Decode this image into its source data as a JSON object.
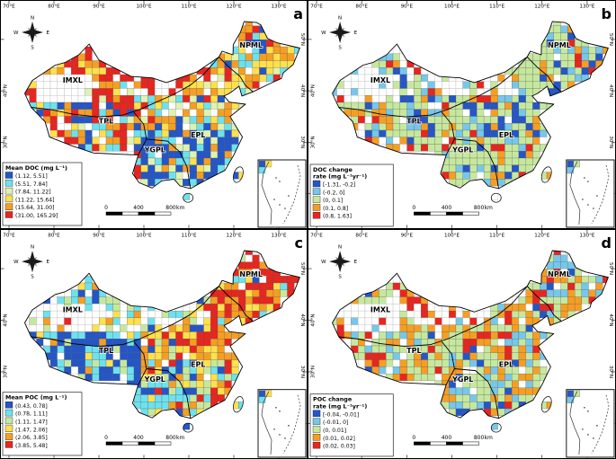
{
  "figure": {
    "background": "#ffffff",
    "type": "four-panel gridded lake-region map of China"
  },
  "axis": {
    "lon_labels": [
      "70°E",
      "80°E",
      "90°E",
      "100°E",
      "110°E",
      "120°E",
      "130°E"
    ],
    "lat_labels_left": [
      "40°N",
      "30°N"
    ],
    "lat_labels_right": [
      "50°N",
      "40°N",
      "30°N",
      "20°N"
    ]
  },
  "compass": {
    "n": "N",
    "e": "E",
    "s": "S",
    "w": "W"
  },
  "scalebar": {
    "ticks": [
      "0",
      "400",
      "800"
    ],
    "unit": "km"
  },
  "region_labels": [
    "NPML",
    "IMXL",
    "TPL",
    "YGPL",
    "EPL"
  ],
  "panels": [
    {
      "letter": "a",
      "legend_title_lines": [
        "Mean DOC (mg L⁻¹)"
      ],
      "legend_items": [
        {
          "label": "(1.12, 5.51]",
          "color": "#2456c8"
        },
        {
          "label": "(5.51, 7.84]",
          "color": "#6ee1ee"
        },
        {
          "label": "(7.84, 11.22]",
          "color": "#dff2b0"
        },
        {
          "label": "(11.22, 15.64]",
          "color": "#ffe04d"
        },
        {
          "label": "(15.64, 31.00]",
          "color": "#f59e23"
        },
        {
          "label": "(31.00, 165.29]",
          "color": "#e8251f"
        }
      ],
      "cell_pattern": {
        "IMXL": {
          "nodata": 0.15,
          "weights": [
            6,
            7,
            6,
            14,
            26,
            41
          ]
        },
        "NPML": {
          "nodata": 0.06,
          "weights": [
            8,
            18,
            12,
            22,
            24,
            16
          ]
        },
        "TPL": {
          "nodata": 0.12,
          "weights": [
            18,
            10,
            6,
            10,
            22,
            34
          ]
        },
        "YGPL": {
          "nodata": 0.05,
          "weights": [
            52,
            20,
            10,
            9,
            6,
            3
          ]
        },
        "EPLN": {
          "nodata": 0.08,
          "weights": [
            8,
            12,
            14,
            22,
            24,
            20
          ]
        },
        "EPLS": {
          "nodata": 0.05,
          "weights": [
            48,
            22,
            12,
            9,
            6,
            3
          ]
        }
      }
    },
    {
      "letter": "b",
      "legend_title_lines": [
        "DOC change",
        "rate (mg L⁻¹yr⁻¹)"
      ],
      "legend_items": [
        {
          "label": "[-1.31, -0.2]",
          "color": "#2456c8"
        },
        {
          "label": "(-0.2, 0]",
          "color": "#76c7e9"
        },
        {
          "label": "(0, 0.1]",
          "color": "#c6e89e"
        },
        {
          "label": "(0.1, 0.8]",
          "color": "#f59e23"
        },
        {
          "label": "(0.8, 1.63]",
          "color": "#e8251f"
        }
      ],
      "cell_pattern": {
        "IMXL": {
          "nodata": 0.3,
          "weights": [
            14,
            16,
            38,
            18,
            14
          ]
        },
        "NPML": {
          "nodata": 0.1,
          "weights": [
            10,
            18,
            52,
            14,
            6
          ]
        },
        "TPL": {
          "nodata": 0.12,
          "weights": [
            12,
            16,
            46,
            16,
            10
          ]
        },
        "YGPL": {
          "nodata": 0.05,
          "weights": [
            8,
            14,
            62,
            12,
            4
          ]
        },
        "EPLN": {
          "nodata": 0.08,
          "weights": [
            10,
            14,
            50,
            18,
            8
          ]
        },
        "EPLS": {
          "nodata": 0.04,
          "weights": [
            8,
            16,
            60,
            12,
            4
          ]
        }
      }
    },
    {
      "letter": "c",
      "legend_title_lines": [
        "Mean POC (mg L⁻¹)"
      ],
      "legend_items": [
        {
          "label": "(0.43, 0.78]",
          "color": "#2456c8"
        },
        {
          "label": "(0.78, 1.11]",
          "color": "#6ee1ee"
        },
        {
          "label": "(1.11, 1.47]",
          "color": "#c6e89e"
        },
        {
          "label": "(1.47, 2.06]",
          "color": "#ffe04d"
        },
        {
          "label": "(2.06, 3.85]",
          "color": "#f59e23"
        },
        {
          "label": "(3.85, 5.48]",
          "color": "#e8251f"
        }
      ],
      "cell_pattern": {
        "IMXL": {
          "nodata": 0.35,
          "weights": [
            18,
            22,
            22,
            18,
            12,
            8
          ]
        },
        "NPML": {
          "nodata": 0.06,
          "weights": [
            3,
            5,
            6,
            12,
            22,
            52
          ]
        },
        "TPL": {
          "nodata": 0.1,
          "weights": [
            56,
            24,
            9,
            6,
            3,
            2
          ]
        },
        "YGPL": {
          "nodata": 0.05,
          "weights": [
            14,
            26,
            22,
            18,
            12,
            8
          ]
        },
        "EPLN": {
          "nodata": 0.08,
          "weights": [
            4,
            8,
            10,
            18,
            28,
            32
          ]
        },
        "EPLS": {
          "nodata": 0.05,
          "weights": [
            10,
            16,
            16,
            22,
            22,
            14
          ]
        }
      }
    },
    {
      "letter": "d",
      "legend_title_lines": [
        "POC change",
        "rate (mg L⁻¹yr⁻¹)"
      ],
      "legend_items": [
        {
          "label": "[-0.04, -0.01]",
          "color": "#2456c8"
        },
        {
          "label": "(-0.01, 0]",
          "color": "#76c7e9"
        },
        {
          "label": "(0, 0.01]",
          "color": "#c6e89e"
        },
        {
          "label": "(0.01, 0.02]",
          "color": "#f59e23"
        },
        {
          "label": "(0.02, 0.03]",
          "color": "#e8251f"
        }
      ],
      "cell_pattern": {
        "IMXL": {
          "nodata": 0.3,
          "weights": [
            6,
            10,
            30,
            36,
            18
          ]
        },
        "NPML": {
          "nodata": 0.08,
          "weights": [
            8,
            14,
            34,
            30,
            14
          ]
        },
        "TPL": {
          "nodata": 0.12,
          "weights": [
            6,
            10,
            42,
            32,
            10
          ]
        },
        "YGPL": {
          "nodata": 0.05,
          "weights": [
            10,
            16,
            42,
            24,
            8
          ]
        },
        "EPLN": {
          "nodata": 0.08,
          "weights": [
            8,
            12,
            40,
            28,
            12
          ]
        },
        "EPLS": {
          "nodata": 0.05,
          "weights": [
            10,
            18,
            44,
            22,
            6
          ]
        }
      }
    }
  ]
}
